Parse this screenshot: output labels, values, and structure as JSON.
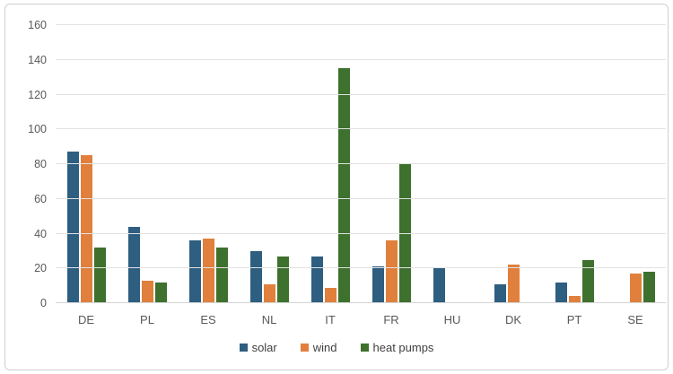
{
  "chart_data": {
    "type": "bar",
    "title": "",
    "xlabel": "",
    "ylabel": "",
    "categories": [
      "DE",
      "PL",
      "ES",
      "NL",
      "IT",
      "FR",
      "HU",
      "DK",
      "PT",
      "SE"
    ],
    "series": [
      {
        "name": "solar",
        "color": "#2E5E80",
        "values": [
          87,
          44,
          36,
          30,
          27,
          21,
          20,
          11,
          12,
          0
        ]
      },
      {
        "name": "wind",
        "color": "#E0803C",
        "values": [
          85,
          13,
          37,
          11,
          9,
          36,
          0,
          22,
          4,
          17
        ]
      },
      {
        "name": "heat pumps",
        "color": "#3E702E",
        "values": [
          32,
          12,
          32,
          27,
          135,
          80,
          0,
          0,
          25,
          18
        ]
      }
    ],
    "ylim": [
      0,
      160
    ],
    "yticks": [
      0,
      20,
      40,
      60,
      80,
      100,
      120,
      140,
      160
    ],
    "grid": true,
    "legend_position": "bottom-center",
    "colors": {
      "axis_label": "#595959",
      "gridline": "#e2e2e2",
      "frame_border": "#cfcfcf",
      "background": "#ffffff"
    }
  }
}
